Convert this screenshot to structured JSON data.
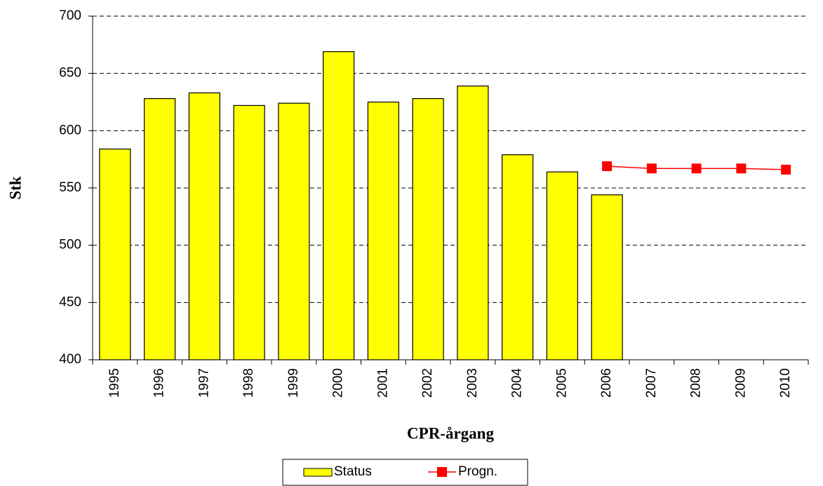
{
  "chart_data": {
    "type": "bar",
    "x_label": "CPR-årgang",
    "y_label": "Stk",
    "categories": [
      "1995",
      "1996",
      "1997",
      "1998",
      "1999",
      "2000",
      "2001",
      "2002",
      "2003",
      "2004",
      "2005",
      "2006",
      "2007",
      "2008",
      "2009",
      "2010"
    ],
    "series": [
      {
        "name": "Status",
        "type": "bar",
        "color": "#ffff00",
        "values": [
          584,
          628,
          633,
          622,
          624,
          669,
          625,
          628,
          639,
          579,
          564,
          544,
          null,
          null,
          null,
          null
        ]
      },
      {
        "name": "Progn.",
        "type": "line",
        "color": "#ff0000",
        "values": [
          null,
          null,
          null,
          null,
          null,
          null,
          null,
          null,
          null,
          null,
          null,
          569,
          567,
          567,
          567,
          566
        ]
      }
    ],
    "ylim": [
      400,
      700
    ],
    "yticks": [
      400,
      450,
      500,
      550,
      600,
      650,
      700
    ],
    "grid": true,
    "legend": "bottom"
  }
}
